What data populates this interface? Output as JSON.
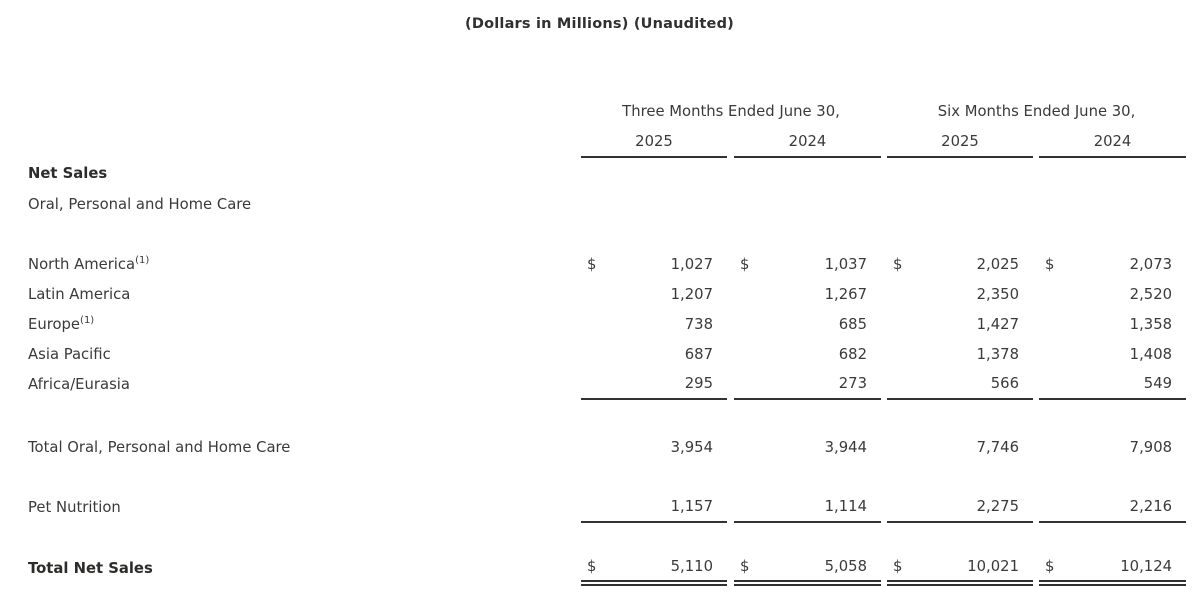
{
  "page": {
    "title": "(Dollars in Millions) (Unaudited)"
  },
  "table": {
    "currency_symbol": "$",
    "col_groups": [
      {
        "label": "Three Months Ended June 30,",
        "years": [
          "2025",
          "2024"
        ]
      },
      {
        "label": "Six Months Ended June 30,",
        "years": [
          "2025",
          "2024"
        ]
      }
    ],
    "section": {
      "heading": "Net Sales",
      "subheading": "Oral, Personal and Home Care"
    },
    "rows": [
      {
        "label": "North America",
        "footnote": "(1)",
        "values": [
          "1,027",
          "1,037",
          "2,025",
          "2,073"
        ]
      },
      {
        "label": "Latin America",
        "values": [
          "1,207",
          "1,267",
          "2,350",
          "2,520"
        ]
      },
      {
        "label": "Europe",
        "footnote": "(1)",
        "values": [
          "738",
          "685",
          "1,427",
          "1,358"
        ]
      },
      {
        "label": "Asia Pacific",
        "values": [
          "687",
          "682",
          "1,378",
          "1,408"
        ]
      },
      {
        "label": "Africa/Eurasia",
        "values": [
          "295",
          "273",
          "566",
          "549"
        ]
      },
      {
        "label": "Total Oral, Personal and Home Care",
        "values": [
          "3,954",
          "3,944",
          "7,746",
          "7,908"
        ]
      },
      {
        "label": "Pet Nutrition",
        "values": [
          "1,157",
          "1,114",
          "2,275",
          "2,216"
        ]
      },
      {
        "label": "Total Net Sales",
        "values": [
          "5,110",
          "5,058",
          "10,021",
          "10,124"
        ]
      }
    ]
  }
}
